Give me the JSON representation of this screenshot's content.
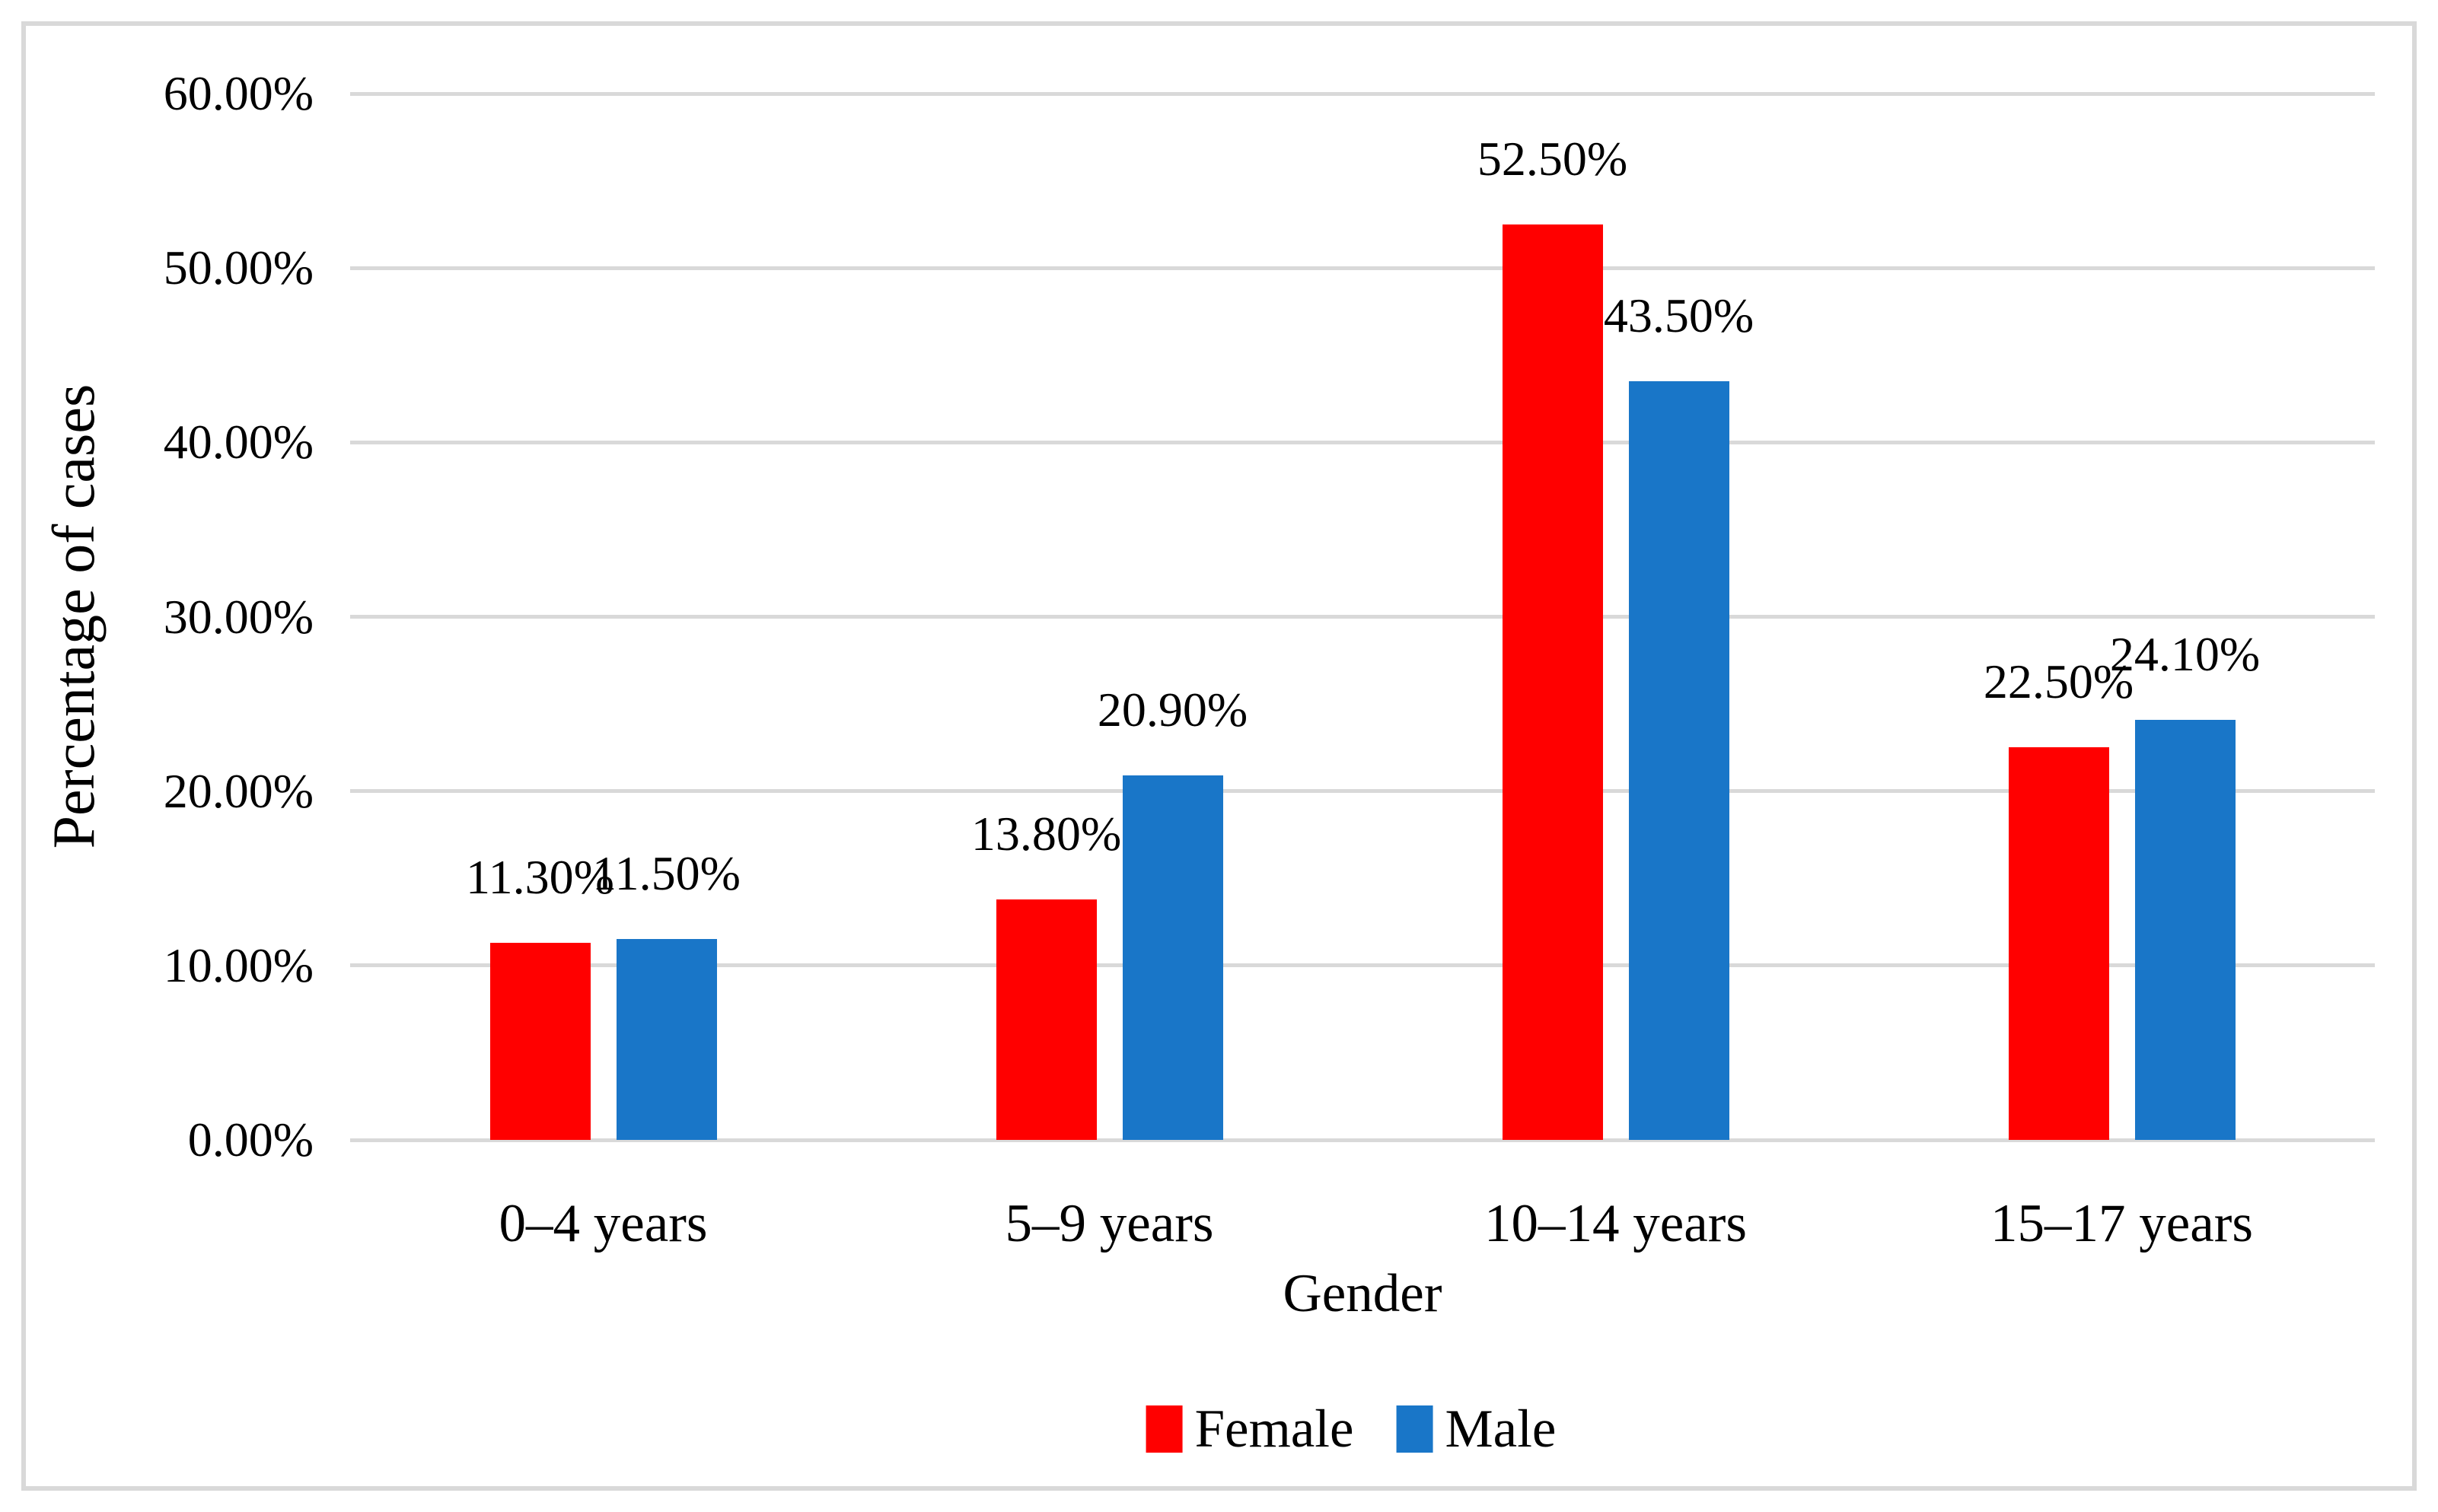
{
  "figure": {
    "background": "#ffffff",
    "border_color": "#d9d9d9",
    "gridline_color": "#d9d9d9",
    "text_color": "#000000"
  },
  "chart_data": {
    "type": "bar",
    "title": "",
    "xlabel": "Gender",
    "ylabel": "Percentage of cases",
    "categories": [
      "0–4 years",
      "5–9 years",
      "10–14 years",
      "15–17 years"
    ],
    "series": [
      {
        "name": "Female",
        "color": "#ff0000",
        "values": [
          11.3,
          13.8,
          52.5,
          22.5
        ],
        "labels": [
          "11.30%",
          "13.80%",
          "52.50%",
          "22.50%"
        ]
      },
      {
        "name": "Male",
        "color": "#1976c8",
        "values": [
          11.5,
          20.9,
          43.5,
          24.1
        ],
        "labels": [
          "11.50%",
          "20.90%",
          "43.50%",
          "24.10%"
        ]
      }
    ],
    "y_axis": {
      "min": 0,
      "max": 60,
      "step": 10,
      "tick_labels": [
        "0.00%",
        "10.00%",
        "20.00%",
        "30.00%",
        "40.00%",
        "50.00%",
        "60.00%"
      ]
    },
    "grid": true,
    "legend_position": "bottom",
    "data_labels": "outside-end"
  }
}
